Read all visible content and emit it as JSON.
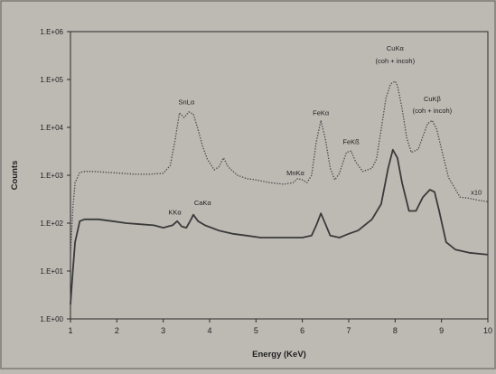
{
  "chart_data": {
    "type": "line",
    "xlabel": "Energy (KeV)",
    "ylabel": "Counts",
    "scale": {
      "y": "log10"
    },
    "xlim": [
      1,
      10
    ],
    "ylim": [
      1,
      1000000
    ],
    "x_ticks": [
      "1",
      "2",
      "3",
      "4",
      "5",
      "6",
      "7",
      "8",
      "9",
      "10"
    ],
    "y_ticks": [
      "1.E+00",
      "1.E+01",
      "1.E+02",
      "1.E+03",
      "1.E+04",
      "1.E+05",
      "1.E+06"
    ],
    "grid": false,
    "series": [
      {
        "style": "dotted",
        "color": "#4a4a4a",
        "points": [
          [
            1.0,
            20
          ],
          [
            1.05,
            200
          ],
          [
            1.1,
            700
          ],
          [
            1.2,
            1150
          ],
          [
            1.3,
            1200
          ],
          [
            1.5,
            1200
          ],
          [
            1.8,
            1150
          ],
          [
            2.1,
            1100
          ],
          [
            2.4,
            1050
          ],
          [
            2.7,
            1050
          ],
          [
            3.0,
            1100
          ],
          [
            3.15,
            1600
          ],
          [
            3.25,
            5000
          ],
          [
            3.35,
            20000
          ],
          [
            3.45,
            16000
          ],
          [
            3.55,
            21000
          ],
          [
            3.65,
            19000
          ],
          [
            3.75,
            9000
          ],
          [
            3.85,
            4000
          ],
          [
            3.95,
            2200
          ],
          [
            4.1,
            1300
          ],
          [
            4.2,
            1500
          ],
          [
            4.3,
            2300
          ],
          [
            4.4,
            1500
          ],
          [
            4.6,
            1000
          ],
          [
            4.8,
            850
          ],
          [
            5.0,
            800
          ],
          [
            5.3,
            700
          ],
          [
            5.6,
            650
          ],
          [
            5.8,
            700
          ],
          [
            5.9,
            850
          ],
          [
            6.0,
            800
          ],
          [
            6.1,
            700
          ],
          [
            6.2,
            1000
          ],
          [
            6.3,
            5000
          ],
          [
            6.4,
            14000
          ],
          [
            6.5,
            5500
          ],
          [
            6.6,
            1400
          ],
          [
            6.7,
            800
          ],
          [
            6.8,
            1100
          ],
          [
            6.95,
            3000
          ],
          [
            7.05,
            3200
          ],
          [
            7.15,
            1900
          ],
          [
            7.3,
            1200
          ],
          [
            7.5,
            1400
          ],
          [
            7.6,
            2200
          ],
          [
            7.7,
            9000
          ],
          [
            7.8,
            40000
          ],
          [
            7.9,
            80000
          ],
          [
            8.0,
            92000
          ],
          [
            8.05,
            75000
          ],
          [
            8.15,
            25000
          ],
          [
            8.25,
            6000
          ],
          [
            8.35,
            3000
          ],
          [
            8.5,
            3500
          ],
          [
            8.6,
            6500
          ],
          [
            8.7,
            12000
          ],
          [
            8.8,
            14000
          ],
          [
            8.9,
            9000
          ],
          [
            9.0,
            3500
          ],
          [
            9.15,
            900
          ],
          [
            9.4,
            350
          ],
          [
            9.6,
            330
          ],
          [
            9.8,
            300
          ],
          [
            10.0,
            280
          ]
        ]
      },
      {
        "style": "solid",
        "color": "#3a3a3a",
        "points": [
          [
            1.0,
            2
          ],
          [
            1.05,
            10
          ],
          [
            1.1,
            40
          ],
          [
            1.2,
            110
          ],
          [
            1.3,
            120
          ],
          [
            1.6,
            120
          ],
          [
            1.9,
            110
          ],
          [
            2.2,
            100
          ],
          [
            2.5,
            95
          ],
          [
            2.8,
            90
          ],
          [
            3.0,
            80
          ],
          [
            3.2,
            90
          ],
          [
            3.3,
            110
          ],
          [
            3.4,
            85
          ],
          [
            3.5,
            80
          ],
          [
            3.6,
            120
          ],
          [
            3.65,
            150
          ],
          [
            3.75,
            110
          ],
          [
            3.9,
            90
          ],
          [
            4.2,
            70
          ],
          [
            4.5,
            60
          ],
          [
            4.8,
            55
          ],
          [
            5.1,
            50
          ],
          [
            5.4,
            50
          ],
          [
            5.7,
            50
          ],
          [
            6.0,
            50
          ],
          [
            6.2,
            55
          ],
          [
            6.3,
            90
          ],
          [
            6.4,
            160
          ],
          [
            6.5,
            95
          ],
          [
            6.6,
            55
          ],
          [
            6.8,
            50
          ],
          [
            7.0,
            60
          ],
          [
            7.2,
            70
          ],
          [
            7.5,
            120
          ],
          [
            7.7,
            250
          ],
          [
            7.85,
            1400
          ],
          [
            7.95,
            3400
          ],
          [
            8.05,
            2300
          ],
          [
            8.15,
            700
          ],
          [
            8.3,
            180
          ],
          [
            8.45,
            180
          ],
          [
            8.6,
            350
          ],
          [
            8.75,
            500
          ],
          [
            8.85,
            450
          ],
          [
            8.95,
            180
          ],
          [
            9.1,
            40
          ],
          [
            9.3,
            28
          ],
          [
            9.6,
            24
          ],
          [
            10.0,
            22
          ]
        ]
      }
    ],
    "annotations": [
      {
        "text": "SnLα",
        "x": 3.5,
        "y": 30000
      },
      {
        "text": "FeKα",
        "x": 6.4,
        "y": 18000
      },
      {
        "text": "MnKα",
        "x": 5.85,
        "y": 1000
      },
      {
        "text": "FeKß",
        "x": 7.05,
        "y": 4500
      },
      {
        "text": "CuKα",
        "x": 8.0,
        "y": 400000
      },
      {
        "text": "(coh + incoh)",
        "x": 8.0,
        "y": 220000
      },
      {
        "text": "CuKβ",
        "x": 8.8,
        "y": 35000
      },
      {
        "text": "(coh + incoh)",
        "x": 8.8,
        "y": 20000
      },
      {
        "text": "x10",
        "x": 9.75,
        "y": 390
      },
      {
        "text": "KKα",
        "x": 3.25,
        "y": 150
      },
      {
        "text": "CaKα",
        "x": 3.85,
        "y": 240
      }
    ]
  }
}
